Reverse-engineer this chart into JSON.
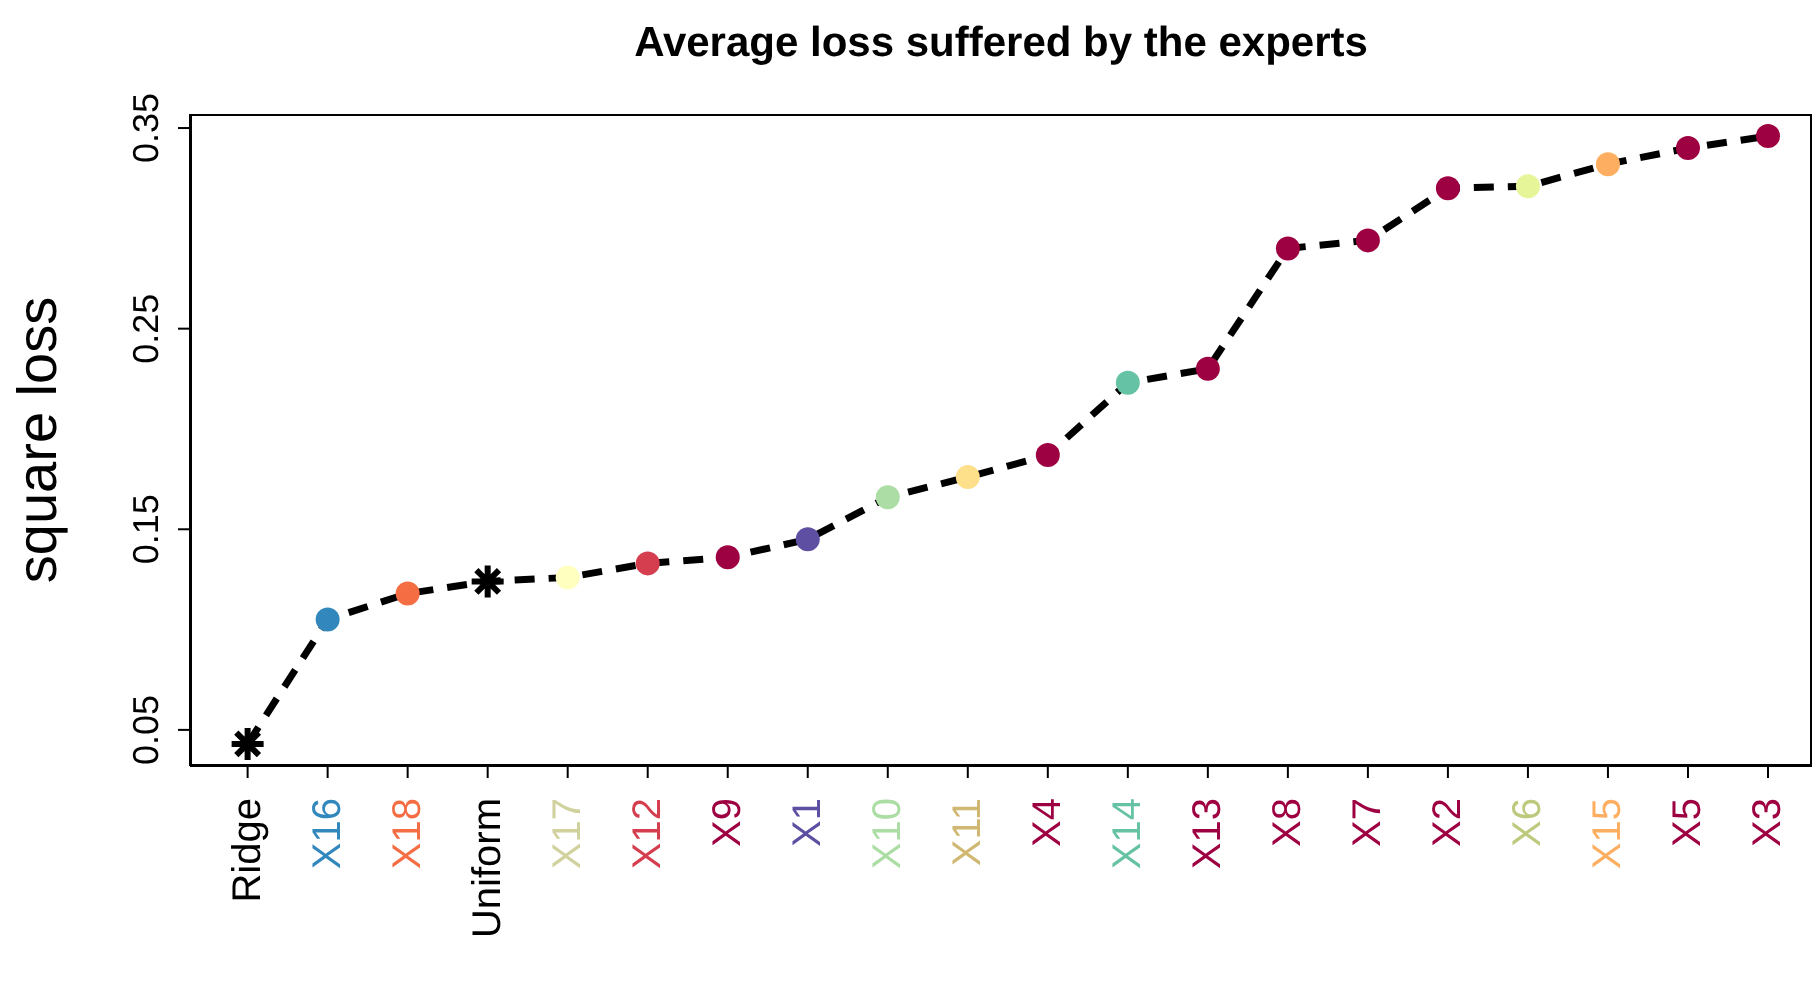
{
  "chart_data": {
    "type": "line",
    "title": "Average loss suffered by the experts",
    "ylabel": "square loss",
    "categories": [
      "Ridge",
      "X16",
      "X18",
      "Uniform",
      "X17",
      "X12",
      "X9",
      "X1",
      "X10",
      "X11",
      "X4",
      "X14",
      "X13",
      "X8",
      "X7",
      "X2",
      "X6",
      "X15",
      "X5",
      "X3"
    ],
    "ylim": [
      0.032,
      0.357
    ],
    "yticks": [
      0.05,
      0.15,
      0.25,
      0.35
    ],
    "series": [
      {
        "type": "line",
        "color": "#000000",
        "line_style": "dashed",
        "marker": "none",
        "values": [
          0.043,
          0.105,
          0.118,
          0.124,
          0.126,
          0.133,
          0.136,
          0.145,
          0.166,
          0.176,
          0.187,
          0.223,
          0.23,
          0.29,
          0.294,
          0.32,
          0.321,
          0.332,
          0.34,
          0.346
        ]
      },
      {
        "type": "scatter",
        "marker": "circle",
        "colors": [
          null,
          "#3288bd",
          "#f46d43",
          null,
          "#ffffbf",
          "#d53e4f",
          "#9e0142",
          "#5e4fa2",
          "#abdda4",
          "#fee08b",
          "#9e0142",
          "#66c2a5",
          "#9e0142",
          "#9e0142",
          "#9e0142",
          "#9e0142",
          "#e6f598",
          "#fdae61",
          "#9e0142",
          "#9e0142"
        ],
        "values": [
          null,
          0.105,
          0.118,
          null,
          0.126,
          0.133,
          0.136,
          0.145,
          0.166,
          0.176,
          0.187,
          0.223,
          0.23,
          0.29,
          0.294,
          0.32,
          0.321,
          0.332,
          0.34,
          0.346
        ]
      },
      {
        "type": "scatter",
        "marker": "cross",
        "color": "#000000",
        "values": [
          0.043,
          null,
          null,
          0.124,
          null,
          null,
          null,
          null,
          null,
          null,
          null,
          null,
          null,
          null,
          null,
          null,
          null,
          null,
          null,
          null
        ]
      }
    ]
  }
}
